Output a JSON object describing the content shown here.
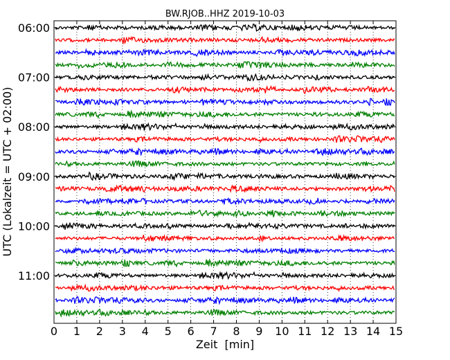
{
  "chart_data": {
    "type": "line",
    "title": "BW.RJOB..HHZ 2019-10-03",
    "xlabel": "Zeit  [min]",
    "ylabel": "UTC (Lokalzeit = UTC + 02:00)",
    "xlim": [
      0,
      15
    ],
    "xticks": [
      "0",
      "1",
      "2",
      "3",
      "4",
      "5",
      "6",
      "7",
      "8",
      "9",
      "10",
      "11",
      "12",
      "13",
      "14",
      "15"
    ],
    "yticks": [
      "06:00",
      "07:00",
      "08:00",
      "09:00",
      "10:00",
      "11:00"
    ],
    "grid": "vertical dotted lines at each minute",
    "trace_interval_minutes": 15,
    "trace_colors": [
      "#000000",
      "#ff0000",
      "#0000ff",
      "#008000"
    ],
    "trace_start_times": [
      "06:00",
      "06:15",
      "06:30",
      "06:45",
      "07:00",
      "07:15",
      "07:30",
      "07:45",
      "08:00",
      "08:15",
      "08:30",
      "08:45",
      "09:00",
      "09:15",
      "09:30",
      "09:45",
      "10:00",
      "10:15",
      "10:30",
      "10:45",
      "11:00",
      "11:15",
      "11:30",
      "11:45"
    ]
  }
}
